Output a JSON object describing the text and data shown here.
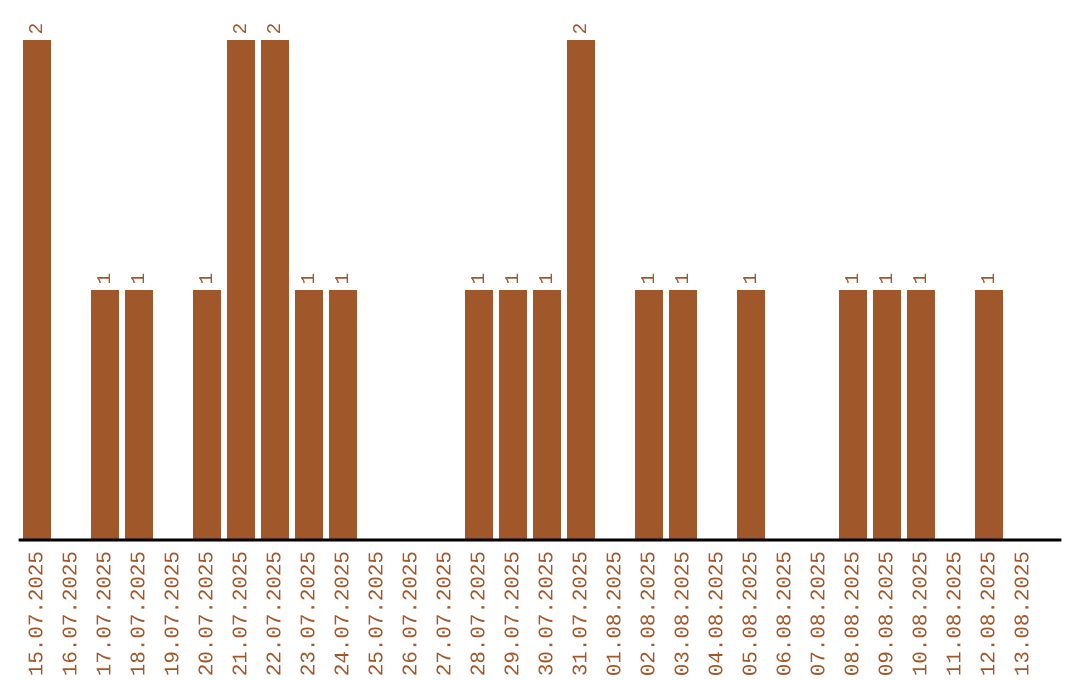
{
  "chart_data": {
    "type": "bar",
    "categories": [
      "15.07.2025",
      "16.07.2025",
      "17.07.2025",
      "18.07.2025",
      "19.07.2025",
      "20.07.2025",
      "21.07.2025",
      "22.07.2025",
      "23.07.2025",
      "24.07.2025",
      "25.07.2025",
      "26.07.2025",
      "27.07.2025",
      "28.07.2025",
      "29.07.2025",
      "30.07.2025",
      "31.07.2025",
      "01.08.2025",
      "02.08.2025",
      "03.08.2025",
      "04.08.2025",
      "05.08.2025",
      "06.08.2025",
      "07.08.2025",
      "08.08.2025",
      "09.08.2025",
      "10.08.2025",
      "11.08.2025",
      "12.08.2025",
      "13.08.2025"
    ],
    "values": [
      2,
      0,
      1,
      1,
      0,
      1,
      2,
      2,
      1,
      1,
      0,
      0,
      0,
      1,
      1,
      1,
      2,
      0,
      1,
      1,
      0,
      1,
      0,
      0,
      1,
      1,
      1,
      0,
      1,
      0
    ],
    "value_labels": [
      "2",
      null,
      "1",
      "1",
      null,
      "1",
      "2",
      "2",
      "1",
      "1",
      null,
      null,
      null,
      "1",
      "1",
      "1",
      "2",
      null,
      "1",
      "1",
      null,
      "1",
      null,
      null,
      "1",
      "1",
      "1",
      null,
      "1",
      null
    ],
    "color": "#a0582a",
    "tick_labels": "x",
    "grid": false
  }
}
